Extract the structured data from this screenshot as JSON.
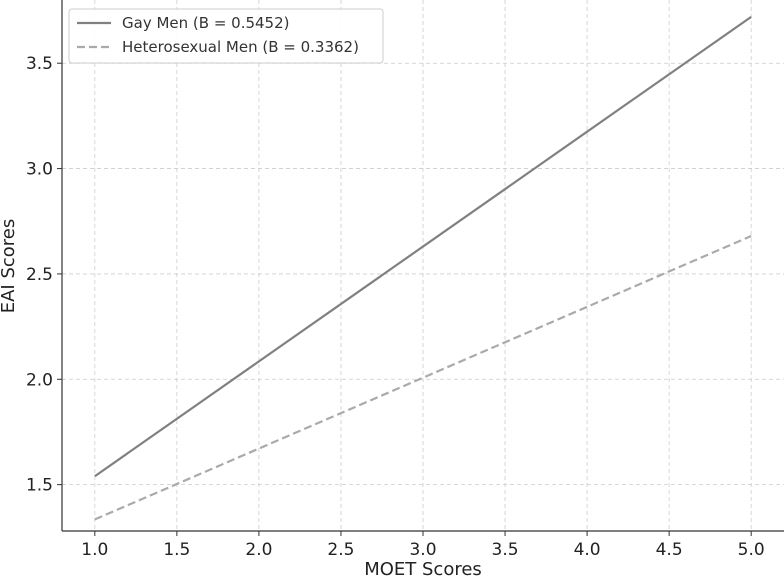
{
  "chart_data": {
    "type": "line",
    "title": "",
    "xlabel": "MOET Scores",
    "ylabel": "EAI Scores",
    "xlim": [
      0.8,
      5.2
    ],
    "ylim": [
      1.28,
      3.8
    ],
    "xticks": [
      1.0,
      1.5,
      2.0,
      2.5,
      3.0,
      3.5,
      4.0,
      4.5,
      5.0
    ],
    "xtick_labels": [
      "1.0",
      "1.5",
      "2.0",
      "2.5",
      "3.0",
      "3.5",
      "4.0",
      "4.5",
      "5.0"
    ],
    "yticks": [
      1.5,
      2.0,
      2.5,
      3.0,
      3.5
    ],
    "ytick_labels": [
      "1.5",
      "2.0",
      "2.5",
      "3.0",
      "3.5"
    ],
    "grid": true,
    "legend_position": "top-left",
    "series": [
      {
        "name": "Gay Men (B = 0.5452)",
        "x": [
          1.0,
          5.0
        ],
        "y": [
          1.54,
          3.72
        ],
        "color": "#808080",
        "dash": "solid"
      },
      {
        "name": "Heterosexual Men (B = 0.3362)",
        "x": [
          1.0,
          5.0
        ],
        "y": [
          1.335,
          2.68
        ],
        "color": "#aaaaaa",
        "dash": "dashed"
      }
    ]
  }
}
